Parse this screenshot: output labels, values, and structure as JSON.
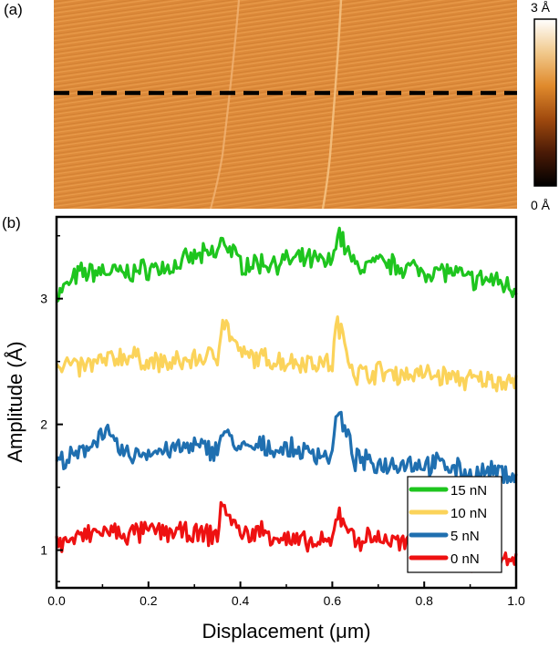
{
  "panel_a": {
    "label": "(a)",
    "colorbar": {
      "max_label": "3 Å",
      "min_label": "0 Å",
      "colors": [
        "#ffffff",
        "#f1c98c",
        "#e08a2c",
        "#a04a0e",
        "#4a1a06",
        "#000000"
      ]
    },
    "map_color": "#dd8a3a",
    "line_color": "#000000"
  },
  "panel_b": {
    "label": "(b)"
  },
  "chart_data": {
    "type": "line",
    "title": "",
    "xlabel": "Displacement (μm)",
    "ylabel": "Amplitude (Å)",
    "xlim": [
      0.0,
      1.0
    ],
    "ylim": [
      0.7,
      3.65
    ],
    "xticks": [
      0.0,
      0.2,
      0.4,
      0.6,
      0.8,
      1.0
    ],
    "xtick_labels": [
      "0.0",
      "0.2",
      "0.4",
      "0.6",
      "0.8",
      "1.0"
    ],
    "yticks": [
      1,
      2,
      3
    ],
    "ytick_labels": [
      "1",
      "2",
      "3"
    ],
    "legend_position": "bottom-right",
    "x": [
      0.0,
      0.05,
      0.1,
      0.15,
      0.2,
      0.25,
      0.3,
      0.35,
      0.36,
      0.4,
      0.45,
      0.5,
      0.55,
      0.6,
      0.61,
      0.65,
      0.7,
      0.75,
      0.8,
      0.85,
      0.9,
      0.95,
      1.0
    ],
    "series": [
      {
        "name": "15 nN",
        "color": "#1ec51e",
        "values": [
          3.02,
          3.2,
          3.22,
          3.2,
          3.24,
          3.25,
          3.33,
          3.36,
          3.48,
          3.28,
          3.28,
          3.3,
          3.31,
          3.28,
          3.55,
          3.25,
          3.28,
          3.26,
          3.22,
          3.22,
          3.15,
          3.15,
          3.08
        ]
      },
      {
        "name": "10 nN",
        "color": "#fbd35a",
        "values": [
          2.5,
          2.45,
          2.5,
          2.55,
          2.5,
          2.48,
          2.52,
          2.55,
          2.85,
          2.55,
          2.52,
          2.5,
          2.5,
          2.48,
          2.82,
          2.4,
          2.42,
          2.4,
          2.4,
          2.38,
          2.35,
          2.35,
          2.35
        ]
      },
      {
        "name": "5 nN",
        "color": "#1f6fb0",
        "values": [
          1.7,
          1.75,
          1.95,
          1.75,
          1.78,
          1.8,
          1.82,
          1.8,
          1.95,
          1.8,
          1.82,
          1.8,
          1.78,
          1.75,
          2.12,
          1.72,
          1.68,
          1.7,
          1.68,
          1.68,
          1.6,
          1.62,
          1.6
        ]
      },
      {
        "name": "0 nN",
        "color": "#ee1111",
        "values": [
          1.05,
          1.1,
          1.15,
          1.12,
          1.15,
          1.15,
          1.12,
          1.12,
          1.38,
          1.12,
          1.15,
          1.08,
          1.05,
          1.05,
          1.32,
          1.08,
          1.1,
          1.05,
          1.0,
          0.95,
          0.92,
          0.92,
          0.9
        ]
      }
    ]
  }
}
